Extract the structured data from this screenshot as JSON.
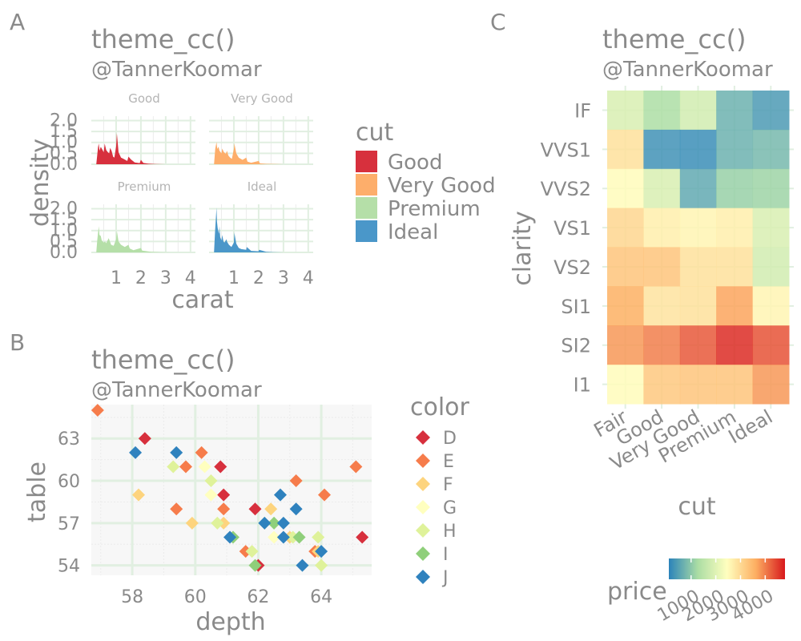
{
  "panel_labels": [
    "A",
    "B",
    "C"
  ],
  "colors": {
    "text": "#8a8a8a",
    "panel_bg": "#f7f7f7",
    "major_grid": "#e1efe1",
    "minor_grid": "#ececec"
  },
  "chart_data": [
    {
      "panel": "A",
      "type": "area",
      "title": "theme_cc()",
      "subtitle": "@TannerKoomar",
      "xlabel": "carat",
      "ylabel": "density",
      "xlim": [
        0,
        4.2
      ],
      "ylim": [
        0,
        2.2
      ],
      "x_ticks": [
        1,
        2,
        3,
        4
      ],
      "y_ticks": [
        0.0,
        0.5,
        1.0,
        1.5,
        2.0
      ],
      "y_tick_labels": [
        "0.0",
        "0.5",
        "1.0",
        "1.5",
        "2.0"
      ],
      "legend_title": "cut",
      "legend_position": "right",
      "facets": [
        {
          "name": "Good",
          "color": "#d7303d",
          "x": [
            0.2,
            0.27,
            0.3,
            0.33,
            0.38,
            0.42,
            0.5,
            0.54,
            0.6,
            0.67,
            0.72,
            0.76,
            0.82,
            0.88,
            0.93,
            1.0,
            1.03,
            1.1,
            1.2,
            1.3,
            1.45,
            1.5,
            1.6,
            1.75,
            1.95,
            2.0,
            2.1,
            2.3,
            2.6,
            3.0
          ],
          "y": [
            0.0,
            0.78,
            0.95,
            0.62,
            0.8,
            0.72,
            0.55,
            0.95,
            0.65,
            0.55,
            0.5,
            0.75,
            0.6,
            0.35,
            0.3,
            0.82,
            1.42,
            0.55,
            0.3,
            0.25,
            0.15,
            0.35,
            0.22,
            0.08,
            0.05,
            0.2,
            0.06,
            0.03,
            0.01,
            0.0
          ]
        },
        {
          "name": "Very Good",
          "color": "#fdae6b",
          "x": [
            0.2,
            0.25,
            0.3,
            0.33,
            0.38,
            0.42,
            0.5,
            0.53,
            0.6,
            0.68,
            0.72,
            0.78,
            0.85,
            0.92,
            1.0,
            1.02,
            1.1,
            1.2,
            1.35,
            1.5,
            1.55,
            1.7,
            2.0,
            2.05,
            2.3,
            2.7,
            3.0
          ],
          "y": [
            0.0,
            0.7,
            1.02,
            0.7,
            0.8,
            0.62,
            0.5,
            0.72,
            0.55,
            0.48,
            0.62,
            0.4,
            0.3,
            0.25,
            0.7,
            0.95,
            0.5,
            0.3,
            0.2,
            0.3,
            0.12,
            0.07,
            0.15,
            0.04,
            0.02,
            0.01,
            0.0
          ]
        },
        {
          "name": "Premium",
          "color": "#b5dfa8",
          "x": [
            0.2,
            0.24,
            0.3,
            0.33,
            0.38,
            0.42,
            0.5,
            0.55,
            0.6,
            0.7,
            0.75,
            0.8,
            0.9,
            1.0,
            1.03,
            1.1,
            1.2,
            1.35,
            1.5,
            1.55,
            1.7,
            2.0,
            2.05,
            2.4,
            2.8,
            3.2
          ],
          "y": [
            0.0,
            0.55,
            1.2,
            0.8,
            0.75,
            0.55,
            0.45,
            0.5,
            0.42,
            0.65,
            0.5,
            0.35,
            0.3,
            0.6,
            0.98,
            0.5,
            0.35,
            0.25,
            0.35,
            0.18,
            0.1,
            0.2,
            0.08,
            0.03,
            0.01,
            0.0
          ]
        },
        {
          "name": "Ideal",
          "color": "#4a97c9",
          "x": [
            0.2,
            0.24,
            0.3,
            0.32,
            0.35,
            0.4,
            0.42,
            0.45,
            0.5,
            0.53,
            0.58,
            0.62,
            0.7,
            0.73,
            0.8,
            0.9,
            1.0,
            1.02,
            1.1,
            1.2,
            1.3,
            1.5,
            1.52,
            1.7,
            2.0,
            2.02,
            2.3,
            2.6,
            3.0
          ],
          "y": [
            0.0,
            0.9,
            2.05,
            1.4,
            1.1,
            0.85,
            1.2,
            0.7,
            0.55,
            0.8,
            0.5,
            0.45,
            0.6,
            0.48,
            0.35,
            0.25,
            0.45,
            0.9,
            0.4,
            0.2,
            0.15,
            0.12,
            0.25,
            0.07,
            0.05,
            0.12,
            0.03,
            0.01,
            0.0
          ]
        }
      ]
    },
    {
      "panel": "B",
      "type": "scatter",
      "title": "theme_cc()",
      "subtitle": "@TannerKoomar",
      "xlabel": "depth",
      "ylabel": "table",
      "xlim": [
        56.7,
        65.6
      ],
      "ylim": [
        53.3,
        65.4
      ],
      "x_ticks": [
        58,
        60,
        62,
        64
      ],
      "y_ticks": [
        54,
        57,
        60,
        63
      ],
      "legend_title": "color",
      "legend_position": "right",
      "series": [
        {
          "name": "D",
          "color": "#d7303d",
          "points": [
            [
              58.4,
              63
            ],
            [
              60.9,
              59
            ],
            [
              61.9,
              58
            ],
            [
              62.0,
              54
            ],
            [
              65.3,
              56
            ],
            [
              60.8,
              61
            ]
          ]
        },
        {
          "name": "E",
          "color": "#f67c4b",
          "points": [
            [
              56.9,
              65
            ],
            [
              59.4,
              58
            ],
            [
              59.7,
              61
            ],
            [
              60.2,
              62
            ],
            [
              60.9,
              58
            ],
            [
              61.6,
              55
            ],
            [
              63.2,
              60
            ],
            [
              64.1,
              59
            ],
            [
              65.1,
              61
            ],
            [
              63.8,
              55
            ]
          ]
        },
        {
          "name": "F",
          "color": "#fdd47e",
          "points": [
            [
              58.2,
              59
            ],
            [
              59.9,
              57
            ],
            [
              60.9,
              57
            ],
            [
              62.4,
              58
            ],
            [
              63.0,
              56
            ],
            [
              63.9,
              55
            ]
          ]
        },
        {
          "name": "G",
          "color": "#ffffbf",
          "points": [
            [
              60.3,
              61
            ],
            [
              60.5,
              59
            ],
            [
              62.2,
              57
            ],
            [
              62.5,
              56
            ]
          ]
        },
        {
          "name": "H",
          "color": "#dff29a",
          "points": [
            [
              59.3,
              61
            ],
            [
              60.5,
              60
            ],
            [
              61.8,
              55
            ],
            [
              62.5,
              57
            ],
            [
              63.1,
              56
            ],
            [
              63.9,
              56
            ],
            [
              64.0,
              54
            ],
            [
              60.7,
              57
            ]
          ]
        },
        {
          "name": "I",
          "color": "#8fcf7a",
          "points": [
            [
              61.2,
              56
            ],
            [
              61.9,
              54
            ],
            [
              62.5,
              57
            ],
            [
              63.3,
              56
            ]
          ]
        },
        {
          "name": "J",
          "color": "#2f82be",
          "points": [
            [
              58.1,
              62
            ],
            [
              59.4,
              62
            ],
            [
              61.1,
              56
            ],
            [
              62.2,
              57
            ],
            [
              62.7,
              59
            ],
            [
              62.8,
              56
            ],
            [
              63.2,
              58
            ],
            [
              63.4,
              54
            ],
            [
              64.0,
              55
            ],
            [
              62.8,
              57
            ]
          ]
        }
      ]
    },
    {
      "panel": "C",
      "type": "heatmap",
      "title": "theme_cc()",
      "subtitle": "@TannerKoomar",
      "xlabel": "cut",
      "ylabel": "clarity",
      "x_categories": [
        "Fair",
        "Good",
        "Very Good",
        "Premium",
        "Ideal"
      ],
      "y_categories": [
        "IF",
        "VVS1",
        "VVS2",
        "VS1",
        "VS2",
        "SI1",
        "SI2",
        "I1"
      ],
      "values": [
        [
          1900,
          1300,
          1800,
          700,
          400
        ],
        [
          2900,
          300,
          250,
          700,
          800
        ],
        [
          2500,
          1900,
          600,
          1100,
          1150
        ],
        [
          3050,
          2700,
          2600,
          2700,
          1900
        ],
        [
          3300,
          3300,
          2900,
          2900,
          1800
        ],
        [
          3600,
          2850,
          2900,
          3700,
          2600
        ],
        [
          3800,
          4000,
          4300,
          4650,
          4350
        ],
        [
          2500,
          3250,
          3300,
          3300,
          3800
        ]
      ],
      "legend_title": "price",
      "legend_position": "bottom-right",
      "colorbar_ticks": [
        1000,
        2000,
        3000,
        4000
      ],
      "colorbar_range": [
        100,
        4800
      ]
    }
  ]
}
